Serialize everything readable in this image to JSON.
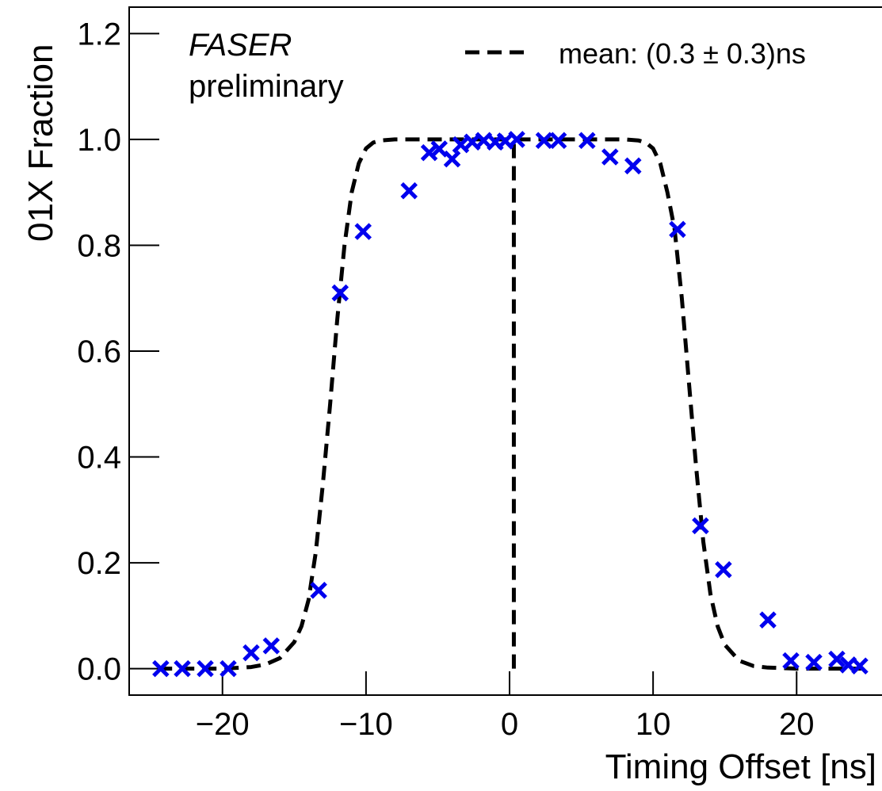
{
  "chart_data": {
    "type": "scatter",
    "xlabel": "Timing Offset [ns]",
    "ylabel": "01X Fraction",
    "xlim": [
      -26.5,
      26.5
    ],
    "ylim": [
      -0.05,
      1.25
    ],
    "xticks": [
      -20,
      -10,
      0,
      10,
      20
    ],
    "xtick_labels": [
      "−20",
      "−10",
      "0",
      "10",
      "20"
    ],
    "yticks": [
      0.0,
      0.2,
      0.4,
      0.6,
      0.8,
      1.0,
      1.2
    ],
    "ytick_labels": [
      "0.0",
      "0.2",
      "0.4",
      "0.6",
      "0.8",
      "1.0",
      "1.2"
    ],
    "annotations": {
      "experiment": "FASER",
      "status": "preliminary"
    },
    "legend": {
      "placement": "top-right",
      "entries": [
        {
          "label": "mean: (0.3 ± 0.3)ns",
          "style": "dashed",
          "color": "#000000"
        }
      ]
    },
    "series": [
      {
        "marker": "x",
        "color": "#0000ee",
        "points": [
          [
            -24.3,
            0.0
          ],
          [
            -22.8,
            0.0
          ],
          [
            -21.2,
            0.0
          ],
          [
            -19.6,
            0.0
          ],
          [
            -18.0,
            0.03
          ],
          [
            -16.6,
            0.043
          ],
          [
            -13.3,
            0.148
          ],
          [
            -11.8,
            0.71
          ],
          [
            -10.2,
            0.826
          ],
          [
            -7.0,
            0.903
          ],
          [
            -5.6,
            0.975
          ],
          [
            -4.9,
            0.982
          ],
          [
            -4.0,
            0.963
          ],
          [
            -3.4,
            0.99
          ],
          [
            -2.6,
            0.995
          ],
          [
            -1.8,
            0.998
          ],
          [
            -1.0,
            0.995
          ],
          [
            -0.3,
            0.997
          ],
          [
            0.5,
            1.0
          ],
          [
            2.4,
            0.998
          ],
          [
            3.4,
            0.998
          ],
          [
            5.4,
            0.998
          ],
          [
            7.0,
            0.967
          ],
          [
            8.6,
            0.95
          ],
          [
            11.7,
            0.83
          ],
          [
            13.3,
            0.27
          ],
          [
            14.9,
            0.187
          ],
          [
            18.0,
            0.092
          ],
          [
            19.6,
            0.015
          ],
          [
            21.2,
            0.012
          ],
          [
            22.8,
            0.018
          ],
          [
            23.6,
            0.007
          ],
          [
            24.4,
            0.005
          ]
        ]
      }
    ],
    "fit_curve": {
      "style": "dashed",
      "color": "#000000",
      "points": [
        [
          -24.5,
          0.0
        ],
        [
          -20.0,
          0.0
        ],
        [
          -18.0,
          0.003
        ],
        [
          -17.0,
          0.008
        ],
        [
          -16.0,
          0.02
        ],
        [
          -15.0,
          0.05
        ],
        [
          -14.5,
          0.08
        ],
        [
          -14.0,
          0.13
        ],
        [
          -13.5,
          0.22
        ],
        [
          -13.0,
          0.35
        ],
        [
          -12.5,
          0.5
        ],
        [
          -12.0,
          0.66
        ],
        [
          -11.5,
          0.8
        ],
        [
          -11.0,
          0.9
        ],
        [
          -10.5,
          0.955
        ],
        [
          -10.0,
          0.983
        ],
        [
          -9.5,
          0.994
        ],
        [
          -9.0,
          0.998
        ],
        [
          -8.0,
          1.0
        ],
        [
          8.0,
          1.0
        ],
        [
          9.0,
          0.998
        ],
        [
          9.5,
          0.994
        ],
        [
          10.0,
          0.983
        ],
        [
          10.5,
          0.955
        ],
        [
          11.0,
          0.9
        ],
        [
          11.5,
          0.83
        ],
        [
          12.0,
          0.7
        ],
        [
          12.5,
          0.54
        ],
        [
          13.0,
          0.38
        ],
        [
          13.5,
          0.24
        ],
        [
          14.0,
          0.14
        ],
        [
          14.5,
          0.08
        ],
        [
          15.0,
          0.045
        ],
        [
          16.0,
          0.015
        ],
        [
          17.0,
          0.005
        ],
        [
          18.0,
          0.002
        ],
        [
          20.0,
          0.0
        ],
        [
          24.5,
          0.0
        ]
      ]
    },
    "mean_line": {
      "x": 0.3,
      "ymin": 0.0,
      "ymax": 1.0,
      "style": "dashed"
    }
  }
}
